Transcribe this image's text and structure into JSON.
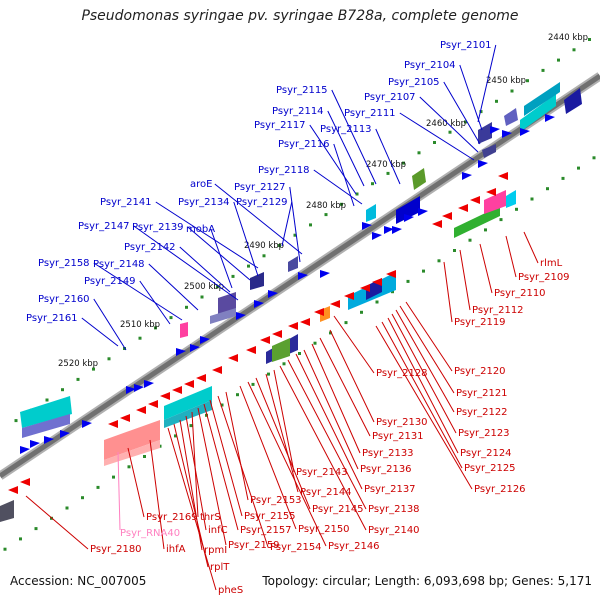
{
  "title": "Pseudomonas syringae pv. syringae B728a, complete genome",
  "footer": {
    "accession": "Accession: NC_007005",
    "summary": "Topology: circular; Length: 6,093,698 bp; Genes: 5,171"
  },
  "colors": {
    "backbone": "#7f7f7f",
    "forward_label": "#0000cc",
    "reverse_label": "#cc0000",
    "rna_label": "#ff80c0",
    "tick_mark": "#2a8a2a"
  },
  "scale_ticks": [
    "2440 kbp",
    "2450 kbp",
    "2460 kbp",
    "2470 kbp",
    "2480 kbp",
    "2490 kbp",
    "2500 kbp",
    "2510 kbp",
    "2520 kbp"
  ],
  "forward_genes": [
    "Psyr_2101",
    "Psyr_2104",
    "Psyr_2105",
    "Psyr_2107",
    "Psyr_2111",
    "Psyr_2113",
    "Psyr_2115",
    "Psyr_2114",
    "Psyr_2117",
    "Psyr_2116",
    "Psyr_2118",
    "aroE",
    "Psyr_2127",
    "Psyr_2141",
    "Psyr_2134",
    "Psyr_2129",
    "mobA",
    "Psyr_2139",
    "Psyr_2147",
    "Psyr_2142",
    "Psyr_2148",
    "Psyr_2158",
    "Psyr_2149",
    "Psyr_2160",
    "Psyr_2161"
  ],
  "reverse_genes": [
    "rlmL",
    "Psyr_2109",
    "Psyr_2110",
    "Psyr_2112",
    "Psyr_2119",
    "Psyr_2120",
    "Psyr_2121",
    "Psyr_2122",
    "Psyr_2123",
    "Psyr_2124",
    "Psyr_2125",
    "Psyr_2126",
    "Psyr_2128",
    "Psyr_2130",
    "Psyr_2131",
    "Psyr_2133",
    "Psyr_2136",
    "Psyr_2137",
    "Psyr_2138",
    "Psyr_2140",
    "Psyr_2143",
    "Psyr_2144",
    "Psyr_2145",
    "Psyr_2146",
    "Psyr_2150",
    "Psyr_2153",
    "Psyr_2154",
    "Psyr_2155",
    "Psyr_2157",
    "Psyr_2159",
    "thrS",
    "infC",
    "rpmI",
    "rplT",
    "pheS",
    "ihfA",
    "Psyr_2169",
    "Psyr_2180"
  ],
  "rna_genes": [
    "Psyr_RNA40"
  ]
}
